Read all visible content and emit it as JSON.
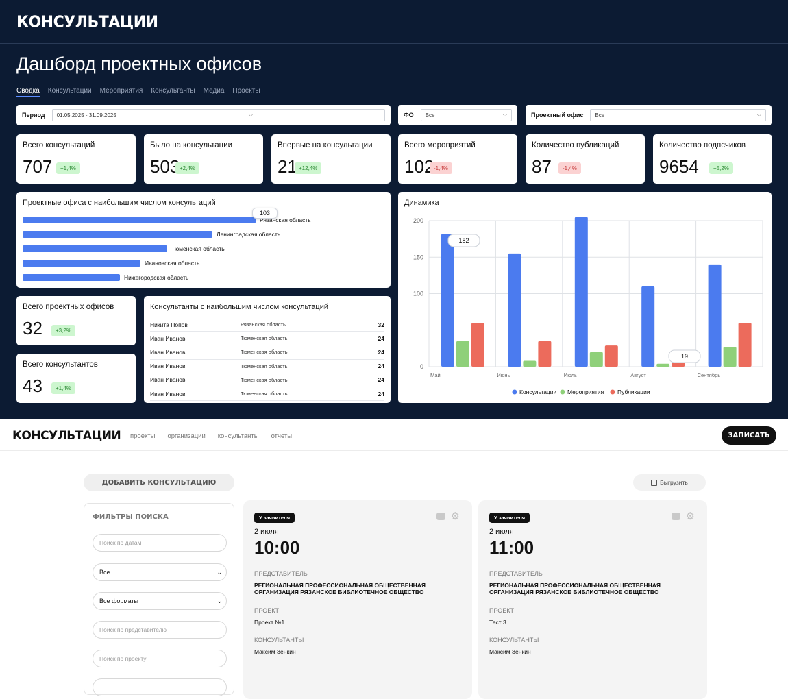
{
  "dashboard": {
    "logo": "КОНСУЛЬТАЦИИ",
    "title": "Дашборд проектных офисов",
    "tabs": [
      "Сводка",
      "Консультации",
      "Мероприятия",
      "Консультанты",
      "Медиа",
      "Проекты"
    ],
    "filters": {
      "period_label": "Период",
      "period_value": "01.05.2025 - 31.09.2025",
      "fo_label": "ФО",
      "fo_value": "Все",
      "office_label": "Проектный офис",
      "office_value": "Все"
    },
    "kpis": [
      {
        "title": "Всего консультаций",
        "value": "707",
        "delta": "+1,4%",
        "trend": "up"
      },
      {
        "title": "Было на консультации",
        "value": "503",
        "delta": "+2,4%",
        "trend": "up"
      },
      {
        "title": "Впервые на консультации",
        "value": "21",
        "delta": "+12,4%",
        "trend": "up"
      },
      {
        "title": "Всего мероприятий",
        "value": "102",
        "delta": "-1,4%",
        "trend": "down"
      },
      {
        "title": "Количество публикаций",
        "value": "87",
        "delta": "-1,4%",
        "trend": "down"
      },
      {
        "title": "Количество подпсчиков",
        "value": "9654",
        "delta": "+5,2%",
        "trend": "up"
      }
    ],
    "offices": {
      "title": "Проектные офиса с наибольшим числом консультаций",
      "tooltip": "103"
    },
    "total_offices": {
      "title": "Всего проектных офисов",
      "value": "32",
      "delta": "+3,2%"
    },
    "total_consultants": {
      "title": "Всего консультантов",
      "value": "43",
      "delta": "+1,4%"
    },
    "consultants": {
      "title": "Консультанты с наибольшим числом консультаций",
      "rows": [
        {
          "name": "Никита Попов",
          "region": "Рязанская область",
          "count": "32"
        },
        {
          "name": "Иван Иванов",
          "region": "Тюменская область",
          "count": "24"
        },
        {
          "name": "Иван Иванов",
          "region": "Тюменская область",
          "count": "24"
        },
        {
          "name": "Иван Иванов",
          "region": "Тюменская область",
          "count": "24"
        },
        {
          "name": "Иван Иванов",
          "region": "Тюменская область",
          "count": "24"
        },
        {
          "name": "Иван Иванов",
          "region": "Тюменская область",
          "count": "24"
        }
      ]
    },
    "dynamics": {
      "title": "Динамика",
      "tooltip_1": "182",
      "tooltip_2": "19"
    }
  },
  "chart_data": [
    {
      "type": "bar",
      "orientation": "horizontal",
      "title": "Проектные офиса с наибольшим числом консультаций",
      "categories": [
        "Рязанская область",
        "Ленинградская область",
        "Тюменская область",
        "Ивановская область",
        "Нижегородская область"
      ],
      "values": [
        103,
        84,
        64,
        52,
        43
      ]
    },
    {
      "type": "bar",
      "title": "Динамика",
      "categories": [
        "Май",
        "Июнь",
        "Июль",
        "Август",
        "Сентябрь"
      ],
      "series": [
        {
          "name": "Консультации",
          "color": "#4b7bef",
          "values": [
            182,
            155,
            205,
            110,
            140
          ]
        },
        {
          "name": "Мероприятия",
          "color": "#8fd07a",
          "values": [
            35,
            8,
            20,
            4,
            27
          ]
        },
        {
          "name": "Публикации",
          "color": "#ec6b5c",
          "values": [
            60,
            35,
            29,
            19,
            60
          ]
        }
      ],
      "yticks": [
        "0",
        "100",
        "150",
        "200"
      ],
      "ylim": [
        0,
        200
      ],
      "legend": "bottom"
    }
  ],
  "app": {
    "logo": "КОНСУЛЬТАЦИИ",
    "nav": [
      "проекты",
      "организации",
      "консультанты",
      "отчеты"
    ],
    "cta": "ЗАПИСАТЬ",
    "add_button": "ДОБАВИТЬ КОНСУЛЬТАЦИЮ",
    "export_button": "Выгрузить",
    "filters": {
      "title": "ФИЛЬТРЫ ПОИСКА",
      "date_placeholder": "Поиск по датам",
      "status_select": "Все",
      "format_select": "Все форматы",
      "rep_placeholder": "Поиск по представителю",
      "project_placeholder": "Поиск по проекту"
    },
    "cards": [
      {
        "status": "У заявителя",
        "date": "2 июля",
        "time": "10:00",
        "rep_label": "ПРЕДСТАВИТЕЛЬ",
        "rep": "РЕГИОНАЛЬНАЯ ПРОФЕССИОНАЛЬНАЯ ОБЩЕСТВЕННАЯ ОРГАНИЗАЦИЯ РЯЗАНСКОЕ БИБЛИОТЕЧНОЕ ОБЩЕСТВО",
        "project_label": "ПРОЕКТ",
        "project": "Проект №1",
        "consultants_label": "КОНСУЛЬТАНТЫ",
        "consultants": "Максим Зенкин"
      },
      {
        "status": "У заявителя",
        "date": "2 июля",
        "time": "11:00",
        "rep_label": "ПРЕДСТАВИТЕЛЬ",
        "rep": "РЕГИОНАЛЬНАЯ ПРОФЕССИОНАЛЬНАЯ ОБЩЕСТВЕННАЯ ОРГАНИЗАЦИЯ РЯЗАНСКОЕ БИБЛИОТЕЧНОЕ ОБЩЕСТВО",
        "project_label": "ПРОЕКТ",
        "project": "Тест 3",
        "consultants_label": "КОНСУЛЬТАНТЫ",
        "consultants": "Максим Зенкин"
      }
    ]
  }
}
